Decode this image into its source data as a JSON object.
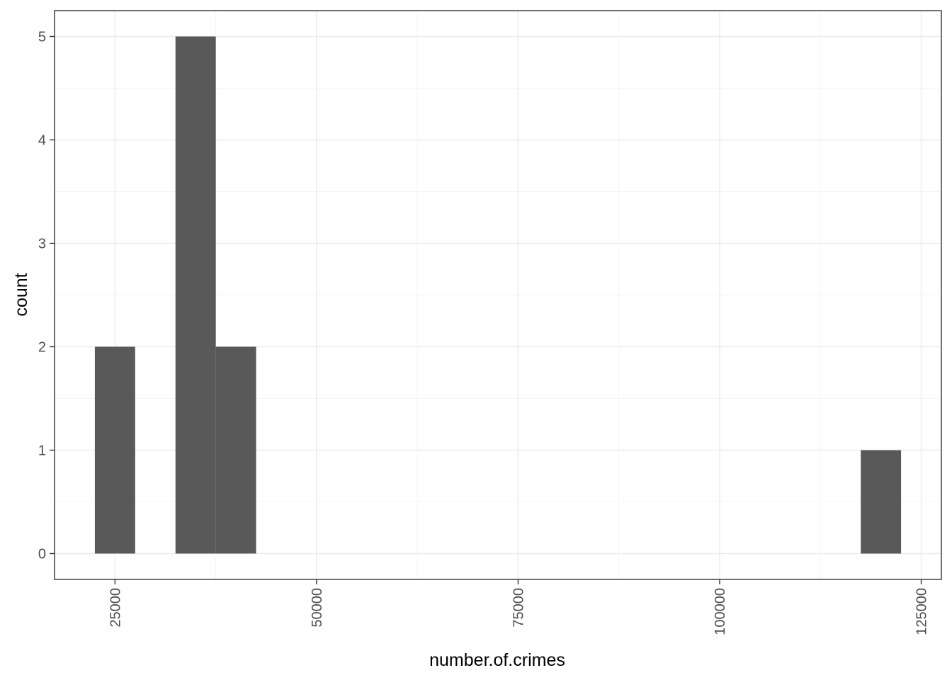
{
  "chart_data": {
    "type": "bar",
    "subtype": "histogram",
    "title": "",
    "xlabel": "number.of.crimes",
    "ylabel": "count",
    "bin_width": 5000,
    "bins": [
      {
        "x_start": 22500,
        "x_end": 27500,
        "count": 2
      },
      {
        "x_start": 27500,
        "x_end": 32500,
        "count": 0
      },
      {
        "x_start": 32500,
        "x_end": 37500,
        "count": 5
      },
      {
        "x_start": 37500,
        "x_end": 42500,
        "count": 2
      },
      {
        "x_start": 117500,
        "x_end": 122500,
        "count": 1
      }
    ],
    "xlim": [
      17500,
      127500
    ],
    "ylim": [
      -0.25,
      5.25
    ],
    "x_ticks": [
      25000,
      50000,
      75000,
      100000,
      125000
    ],
    "x_tick_labels": [
      "25000",
      "50000",
      "75000",
      "100000",
      "125000"
    ],
    "x_minor_ticks": [
      37500,
      62500,
      87500,
      112500
    ],
    "y_ticks": [
      0,
      1,
      2,
      3,
      4,
      5
    ],
    "y_tick_labels": [
      "0",
      "1",
      "2",
      "3",
      "4",
      "5"
    ],
    "y_minor_ticks": [
      0.5,
      1.5,
      2.5,
      3.5,
      4.5
    ],
    "grid": true,
    "legend": "none",
    "bar_color": "#595959",
    "theme": "bw"
  }
}
